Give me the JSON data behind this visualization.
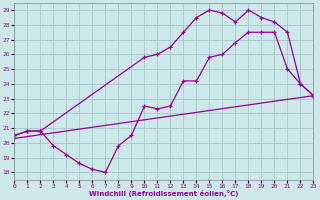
{
  "xlabel": "Windchill (Refroidissement éolien,°C)",
  "bg_color": "#cce8e8",
  "grid_color": "#aacccc",
  "line_color": "#990099",
  "xlim": [
    0,
    23
  ],
  "ylim": [
    17.5,
    29.5
  ],
  "xticks": [
    0,
    1,
    2,
    3,
    4,
    5,
    6,
    7,
    8,
    9,
    10,
    11,
    12,
    13,
    14,
    15,
    16,
    17,
    18,
    19,
    20,
    21,
    22,
    23
  ],
  "yticks": [
    18,
    19,
    20,
    21,
    22,
    23,
    24,
    25,
    26,
    27,
    28,
    29
  ],
  "curve1_x": [
    0,
    1,
    2,
    3,
    4,
    5,
    6,
    7,
    8,
    9,
    10,
    11,
    12,
    13,
    14,
    15,
    16,
    17,
    18,
    19,
    20,
    21,
    22,
    23
  ],
  "curve1_y": [
    20.5,
    20.8,
    20.8,
    19.8,
    19.2,
    18.6,
    18.2,
    18.0,
    19.8,
    20.5,
    22.5,
    22.3,
    22.5,
    24.2,
    24.2,
    25.8,
    26.0,
    26.8,
    27.5,
    27.5,
    27.5,
    25.0,
    24.0,
    23.2
  ],
  "curve2_x": [
    0,
    1,
    2,
    10,
    11,
    12,
    13,
    14,
    15,
    16,
    17,
    18,
    19,
    20,
    21,
    22,
    23
  ],
  "curve2_y": [
    20.5,
    20.8,
    20.8,
    25.8,
    26.0,
    26.5,
    27.5,
    28.5,
    29.0,
    28.8,
    28.2,
    29.0,
    28.5,
    28.2,
    27.5,
    24.0,
    23.2
  ],
  "curve3_x": [
    0,
    23
  ],
  "curve3_y": [
    20.3,
    23.2
  ]
}
